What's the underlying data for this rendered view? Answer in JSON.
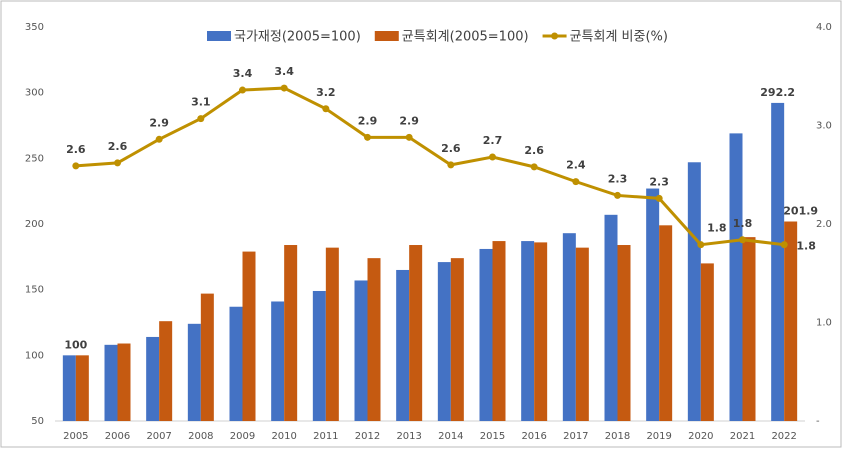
{
  "chart_data": {
    "type": "bar_line",
    "categories": [
      "2005",
      "2006",
      "2007",
      "2008",
      "2009",
      "2010",
      "2011",
      "2012",
      "2013",
      "2014",
      "2015",
      "2016",
      "2017",
      "2018",
      "2019",
      "2020",
      "2021",
      "2022"
    ],
    "series": [
      {
        "name": "국가재정(2005=100)",
        "color": "#4472c4",
        "type": "bar",
        "values": [
          100,
          108,
          114,
          124,
          137,
          141,
          149,
          157,
          165,
          171,
          181,
          187,
          193,
          207,
          227,
          247,
          269,
          292.2
        ],
        "value_labels": [
          "100",
          null,
          null,
          null,
          null,
          null,
          null,
          null,
          null,
          null,
          null,
          null,
          null,
          null,
          null,
          null,
          null,
          "292.2"
        ]
      },
      {
        "name": "균특회계(2005=100)",
        "color": "#c55a11",
        "type": "bar",
        "values": [
          100,
          109,
          126,
          147,
          179,
          184,
          182,
          174,
          184,
          174,
          187,
          186,
          182,
          184,
          199,
          170,
          190,
          201.9
        ],
        "value_labels": [
          null,
          null,
          null,
          null,
          null,
          null,
          null,
          null,
          null,
          null,
          null,
          null,
          null,
          null,
          null,
          null,
          null,
          "201.9"
        ]
      },
      {
        "name": "균특회계 비중(%)",
        "color": "#bf9000",
        "type": "line",
        "axis": "y2",
        "values": [
          2.59,
          2.62,
          2.86,
          3.07,
          3.36,
          3.38,
          3.17,
          2.88,
          2.88,
          2.6,
          2.68,
          2.58,
          2.43,
          2.29,
          2.26,
          1.79,
          1.84,
          1.79
        ],
        "value_labels": [
          "2.6",
          "2.6",
          "2.9",
          "3.1",
          "3.4",
          "3.4",
          "3.2",
          "2.9",
          "2.9",
          "2.6",
          "2.7",
          "2.6",
          "2.4",
          "2.3",
          "2.3",
          "1.8",
          "1.8",
          "1.8"
        ]
      }
    ],
    "ylim": [
      50,
      350
    ],
    "yticks": [
      50,
      100,
      150,
      200,
      250,
      300,
      350
    ],
    "y2lim": [
      0,
      4
    ],
    "y2ticks": [
      {
        "value": 0,
        "label": "-"
      },
      {
        "value": 1,
        "label": "1.0"
      },
      {
        "value": 2,
        "label": "2.0"
      },
      {
        "value": 3,
        "label": "3.0"
      },
      {
        "value": 4,
        "label": "4.0"
      }
    ],
    "legend": "top"
  }
}
